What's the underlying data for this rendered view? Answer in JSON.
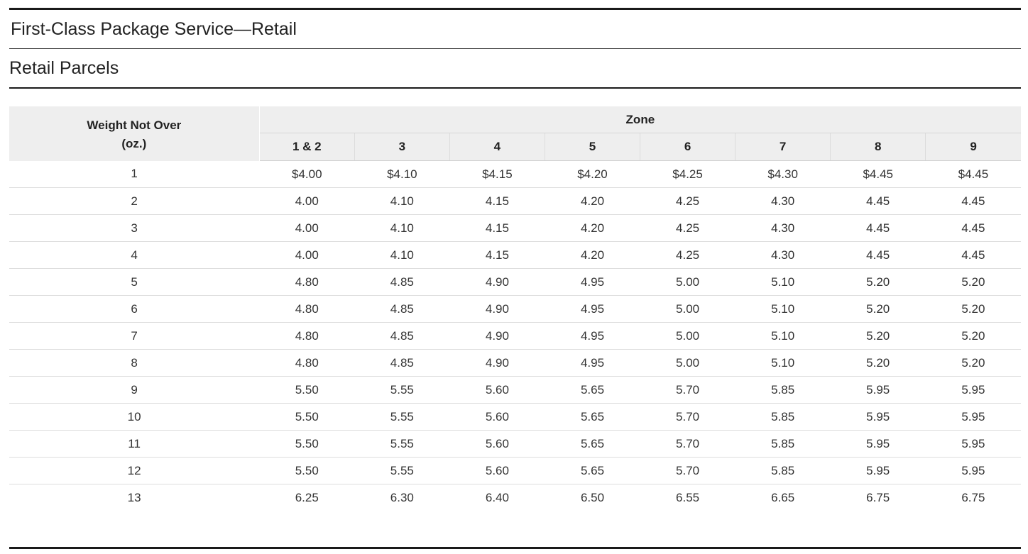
{
  "page": {
    "title": "First-Class Package Service—Retail",
    "subtitle": "Retail Parcels"
  },
  "table": {
    "weight_header_line1": "Weight Not Over",
    "weight_header_line2": "(oz.)",
    "zone_header": "Zone",
    "zones": [
      "1 & 2",
      "3",
      "4",
      "5",
      "6",
      "7",
      "8",
      "9"
    ],
    "rows": [
      {
        "weight": "1",
        "prices": [
          "$4.00",
          "$4.10",
          "$4.15",
          "$4.20",
          "$4.25",
          "$4.30",
          "$4.45",
          "$4.45"
        ]
      },
      {
        "weight": "2",
        "prices": [
          "4.00",
          "4.10",
          "4.15",
          "4.20",
          "4.25",
          "4.30",
          "4.45",
          "4.45"
        ]
      },
      {
        "weight": "3",
        "prices": [
          "4.00",
          "4.10",
          "4.15",
          "4.20",
          "4.25",
          "4.30",
          "4.45",
          "4.45"
        ]
      },
      {
        "weight": "4",
        "prices": [
          "4.00",
          "4.10",
          "4.15",
          "4.20",
          "4.25",
          "4.30",
          "4.45",
          "4.45"
        ]
      },
      {
        "weight": "5",
        "prices": [
          "4.80",
          "4.85",
          "4.90",
          "4.95",
          "5.00",
          "5.10",
          "5.20",
          "5.20"
        ]
      },
      {
        "weight": "6",
        "prices": [
          "4.80",
          "4.85",
          "4.90",
          "4.95",
          "5.00",
          "5.10",
          "5.20",
          "5.20"
        ]
      },
      {
        "weight": "7",
        "prices": [
          "4.80",
          "4.85",
          "4.90",
          "4.95",
          "5.00",
          "5.10",
          "5.20",
          "5.20"
        ]
      },
      {
        "weight": "8",
        "prices": [
          "4.80",
          "4.85",
          "4.90",
          "4.95",
          "5.00",
          "5.10",
          "5.20",
          "5.20"
        ]
      },
      {
        "weight": "9",
        "prices": [
          "5.50",
          "5.55",
          "5.60",
          "5.65",
          "5.70",
          "5.85",
          "5.95",
          "5.95"
        ]
      },
      {
        "weight": "10",
        "prices": [
          "5.50",
          "5.55",
          "5.60",
          "5.65",
          "5.70",
          "5.85",
          "5.95",
          "5.95"
        ]
      },
      {
        "weight": "11",
        "prices": [
          "5.50",
          "5.55",
          "5.60",
          "5.65",
          "5.70",
          "5.85",
          "5.95",
          "5.95"
        ]
      },
      {
        "weight": "12",
        "prices": [
          "5.50",
          "5.55",
          "5.60",
          "5.65",
          "5.70",
          "5.85",
          "5.95",
          "5.95"
        ]
      },
      {
        "weight": "13",
        "prices": [
          "6.25",
          "6.30",
          "6.40",
          "6.50",
          "6.55",
          "6.65",
          "6.75",
          "6.75"
        ]
      }
    ]
  },
  "colors": {
    "header_background": "#eeeeee",
    "rule": "#1a1a1a",
    "row_divider": "#dddddd"
  }
}
